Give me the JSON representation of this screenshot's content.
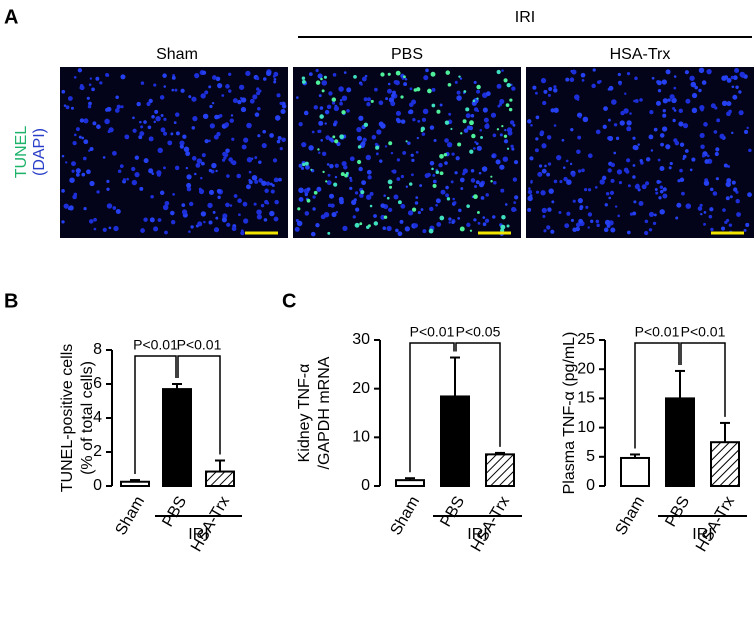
{
  "panel_a": {
    "letter": "A",
    "group_label": "IRI",
    "columns": [
      "Sham",
      "PBS",
      "HSA-Trx"
    ],
    "stain_label": "TUNEL",
    "counter_label": "(DAPI)"
  },
  "panel_b": {
    "letter": "B"
  },
  "panel_c": {
    "letter": "C"
  },
  "chart_data": [
    {
      "type": "bar",
      "ylabel": [
        "TUNEL-positive cells",
        "(% of total cells)"
      ],
      "categories": [
        "Sham",
        "PBS",
        "HSA-Trx"
      ],
      "values": [
        0.25,
        5.7,
        0.85
      ],
      "errors": [
        0.1,
        0.3,
        0.65
      ],
      "colors": [
        "#ffffff",
        "#000000",
        "#ffffff"
      ],
      "hatch": [
        false,
        false,
        true
      ],
      "ylim": [
        0,
        8
      ],
      "yticks": [
        0,
        2,
        4,
        6,
        8
      ],
      "annotations": [
        "P<0.01",
        "P<0.01"
      ],
      "group_label": "IRI"
    },
    {
      "type": "bar",
      "ylabel": [
        "Kidney  TNF-α",
        "/GAPDH mRNA"
      ],
      "categories": [
        "Sham",
        "PBS",
        "HSA-Trx"
      ],
      "values": [
        1.2,
        18.4,
        6.5
      ],
      "errors": [
        0.4,
        8,
        0.3
      ],
      "colors": [
        "#ffffff",
        "#000000",
        "#ffffff"
      ],
      "hatch": [
        false,
        false,
        true
      ],
      "ylim": [
        0,
        30
      ],
      "yticks": [
        0,
        10,
        20,
        30
      ],
      "annotations": [
        "P<0.01",
        "P<0.05"
      ],
      "group_label": "IRI"
    },
    {
      "type": "bar",
      "ylabel": [
        "Plasma TNF-α (pg/mL)"
      ],
      "categories": [
        "Sham",
        "PBS",
        "HSA-Trx"
      ],
      "values": [
        4.8,
        15,
        7.5
      ],
      "errors": [
        0.6,
        4.7,
        3.3
      ],
      "colors": [
        "#ffffff",
        "#000000",
        "#ffffff"
      ],
      "hatch": [
        false,
        false,
        true
      ],
      "ylim": [
        0,
        25
      ],
      "yticks": [
        0,
        5,
        10,
        15,
        20,
        25
      ],
      "annotations": [
        "P<0.01",
        "P<0.01"
      ],
      "group_label": "IRI"
    }
  ]
}
